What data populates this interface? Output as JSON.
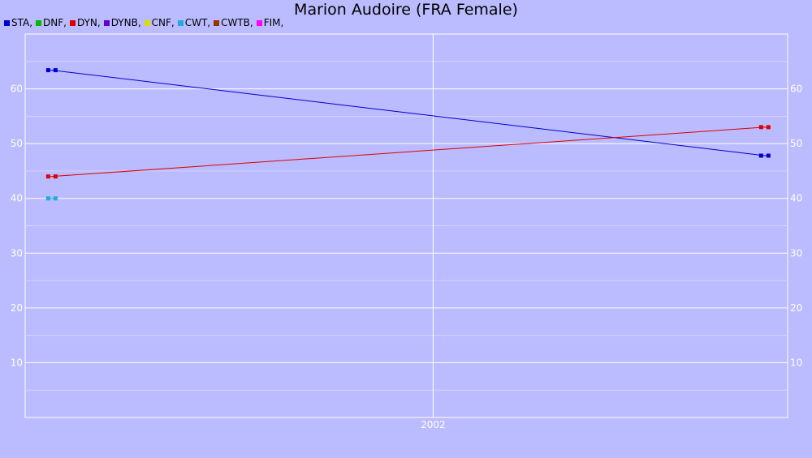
{
  "chart_data": {
    "type": "line",
    "title": "Marion Audoire (FRA Female)",
    "legend": [
      {
        "label": "STA,",
        "color": "#0000cc"
      },
      {
        "label": "DNF,",
        "color": "#00bb00"
      },
      {
        "label": "DYN,",
        "color": "#dd0000"
      },
      {
        "label": "DYNB,",
        "color": "#6600cc"
      },
      {
        "label": "CNF,",
        "color": "#dddd00"
      },
      {
        "label": "CWT,",
        "color": "#22aadd"
      },
      {
        "label": "CWTB,",
        "color": "#993300"
      },
      {
        "label": "FIM,",
        "color": "#ff00ff"
      }
    ],
    "legend_position": "top-left",
    "x_tick_labels": [
      "2002"
    ],
    "y_ticks": [
      10,
      20,
      30,
      40,
      50,
      60
    ],
    "ylim": [
      0,
      70
    ],
    "grid": true,
    "series": [
      {
        "name": "STA",
        "color": "#0000cc",
        "x": [
          2001.0,
          2002.87
        ],
        "values": [
          63.4,
          47.8
        ]
      },
      {
        "name": "DYN",
        "color": "#dd0000",
        "x": [
          2001.0,
          2002.87
        ],
        "values": [
          44,
          53
        ]
      },
      {
        "name": "CWT",
        "color": "#22aadd",
        "x": [
          2001.0
        ],
        "values": [
          40
        ]
      }
    ]
  }
}
